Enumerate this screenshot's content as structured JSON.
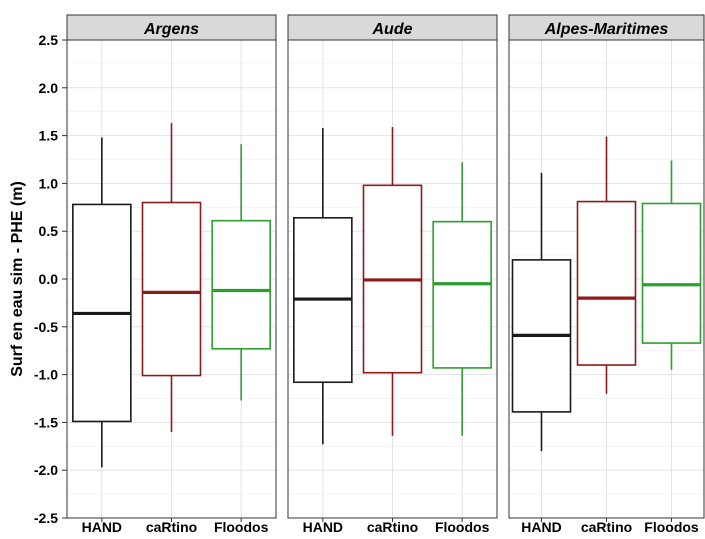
{
  "chart_data": {
    "type": "boxplot",
    "ylabel": "Surf en eau sim - PHE (m)",
    "xlabel": "",
    "ylim": [
      -2.5,
      2.5
    ],
    "yticks": [
      -2.5,
      -2.0,
      -1.5,
      -1.0,
      -0.5,
      0.0,
      0.5,
      1.0,
      1.5,
      2.0,
      2.5
    ],
    "ytick_labels": [
      "-2.5",
      "-2.0",
      "-1.5",
      "-1.0",
      "-0.5",
      "0.0",
      "0.5",
      "1.0",
      "1.5",
      "2.0",
      "2.5"
    ],
    "grid": true,
    "categories": [
      "HAND",
      "caRtino",
      "Floodos"
    ],
    "colors": {
      "HAND": "#1a1a1a",
      "caRtino": "#8b1a1a",
      "Floodos": "#2e9e2e"
    },
    "panels": [
      {
        "title": "Argens",
        "boxes": [
          {
            "category": "HAND",
            "min": -1.97,
            "q1": -1.49,
            "median": -0.36,
            "q3": 0.78,
            "max": 1.48
          },
          {
            "category": "caRtino",
            "min": -1.6,
            "q1": -1.01,
            "median": -0.14,
            "q3": 0.8,
            "max": 1.63
          },
          {
            "category": "Floodos",
            "min": -1.27,
            "q1": -0.73,
            "median": -0.12,
            "q3": 0.61,
            "max": 1.41
          }
        ]
      },
      {
        "title": "Aude",
        "boxes": [
          {
            "category": "HAND",
            "min": -1.73,
            "q1": -1.08,
            "median": -0.21,
            "q3": 0.64,
            "max": 1.58
          },
          {
            "category": "caRtino",
            "min": -1.64,
            "q1": -0.98,
            "median": -0.01,
            "q3": 0.98,
            "max": 1.59
          },
          {
            "category": "Floodos",
            "min": -1.64,
            "q1": -0.93,
            "median": -0.05,
            "q3": 0.6,
            "max": 1.22
          }
        ]
      },
      {
        "title": "Alpes-Maritimes",
        "boxes": [
          {
            "category": "HAND",
            "min": -1.8,
            "q1": -1.39,
            "median": -0.59,
            "q3": 0.2,
            "max": 1.11
          },
          {
            "category": "caRtino",
            "min": -1.2,
            "q1": -0.9,
            "median": -0.2,
            "q3": 0.81,
            "max": 1.49
          },
          {
            "category": "Floodos",
            "min": -0.95,
            "q1": -0.67,
            "median": -0.06,
            "q3": 0.79,
            "max": 1.24
          }
        ]
      }
    ]
  }
}
